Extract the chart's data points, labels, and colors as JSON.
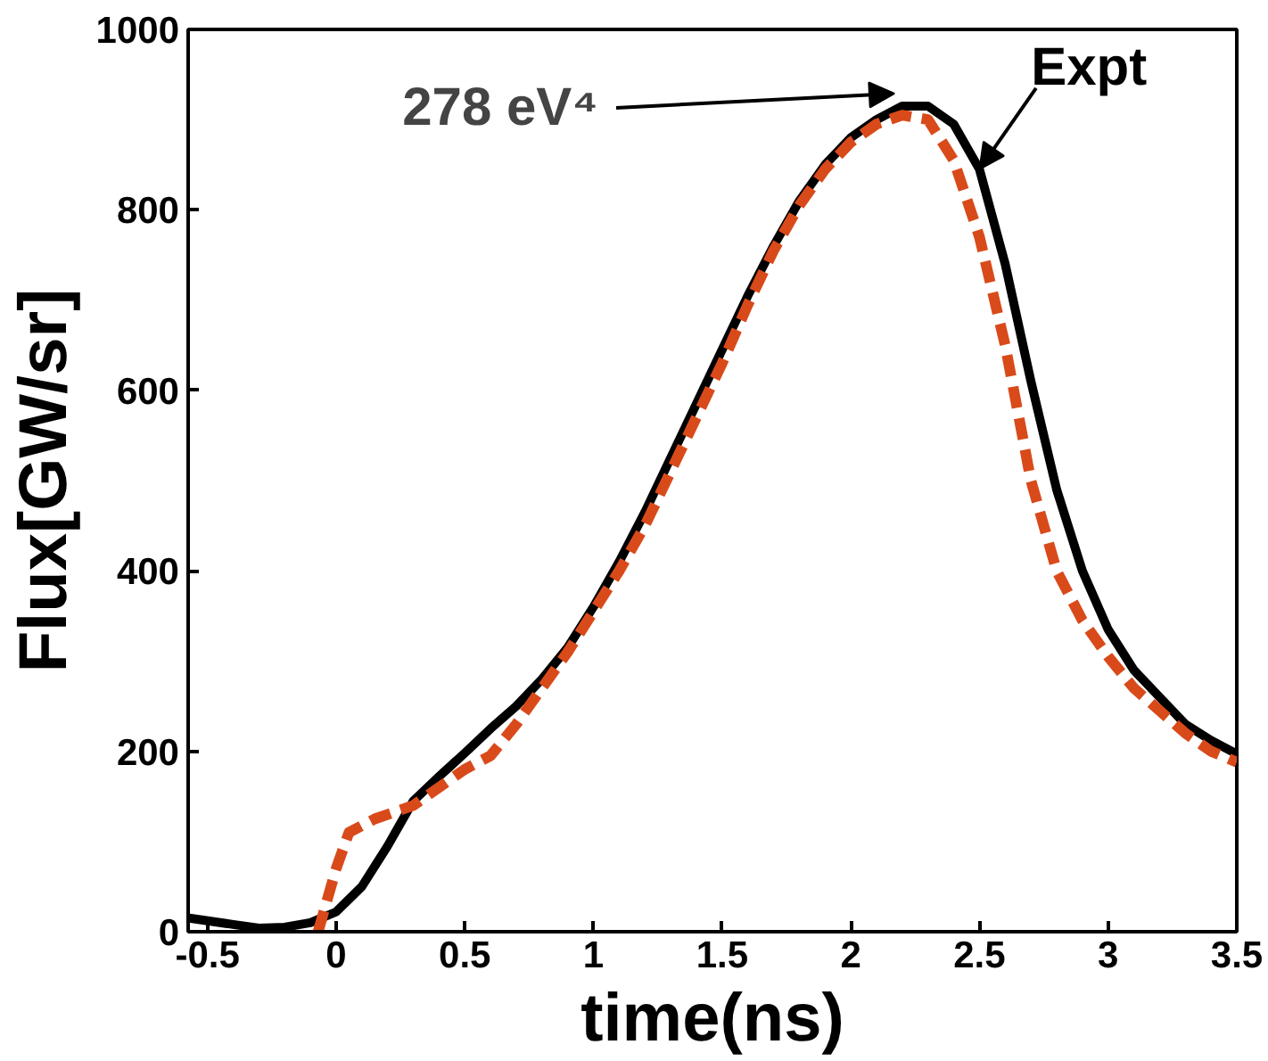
{
  "chart_data": {
    "type": "line",
    "xlabel": "time(ns)",
    "ylabel": "Flux[GW/sr]",
    "xlim": [
      -0.575,
      3.5
    ],
    "ylim": [
      0,
      1000
    ],
    "xticks": [
      -0.5,
      0,
      0.5,
      1,
      1.5,
      2,
      2.5,
      3,
      3.5
    ],
    "yticks": [
      0,
      200,
      400,
      600,
      800,
      1000
    ],
    "grid": false,
    "legend": false,
    "annotations": [
      "278 eV⁴"
    ],
    "series": [
      {
        "name": "Expt",
        "color": "#000000",
        "line_style": "solid",
        "x": [
          -0.57,
          -0.4,
          -0.3,
          -0.2,
          -0.1,
          0,
          0.1,
          0.2,
          0.3,
          0.4,
          0.5,
          0.6,
          0.7,
          0.8,
          0.9,
          1.0,
          1.1,
          1.2,
          1.3,
          1.4,
          1.5,
          1.6,
          1.7,
          1.8,
          1.9,
          2.0,
          2.1,
          2.2,
          2.3,
          2.4,
          2.5,
          2.6,
          2.7,
          2.8,
          2.9,
          3.0,
          3.1,
          3.2,
          3.3,
          3.4,
          3.5
        ],
        "values": [
          15,
          8,
          4,
          5,
          10,
          22,
          50,
          95,
          145,
          172,
          198,
          225,
          250,
          280,
          315,
          360,
          410,
          465,
          525,
          585,
          645,
          705,
          760,
          810,
          850,
          880,
          900,
          915,
          915,
          895,
          845,
          740,
          610,
          490,
          400,
          335,
          290,
          260,
          230,
          212,
          197
        ]
      },
      {
        "color": "#d94a1a",
        "line_style": "dashed",
        "x": [
          -0.07,
          0,
          0.05,
          0.15,
          0.3,
          0.5,
          0.6,
          0.7,
          0.8,
          0.9,
          1.0,
          1.1,
          1.2,
          1.3,
          1.4,
          1.5,
          1.6,
          1.7,
          1.8,
          1.9,
          2.0,
          2.1,
          2.2,
          2.3,
          2.4,
          2.5,
          2.6,
          2.7,
          2.8,
          2.9,
          3.0,
          3.1,
          3.2,
          3.3,
          3.4,
          3.5
        ],
        "values": [
          0,
          70,
          110,
          125,
          140,
          180,
          195,
          230,
          270,
          310,
          355,
          400,
          450,
          510,
          570,
          630,
          695,
          755,
          805,
          845,
          875,
          895,
          905,
          900,
          855,
          770,
          650,
          500,
          400,
          345,
          305,
          270,
          245,
          220,
          200,
          188
        ]
      }
    ]
  }
}
